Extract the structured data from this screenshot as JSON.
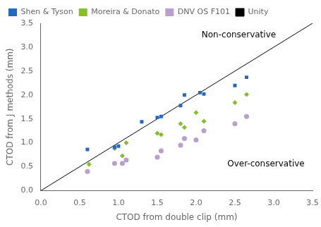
{
  "chart_data": {
    "type": "scatter",
    "xlabel": "CTOD from double clip (mm)",
    "ylabel": "CTOD from J methods (mm)",
    "series": [
      {
        "name": "Unity",
        "type": "line",
        "line_style": "solid",
        "color": "#000000",
        "x": [
          0,
          3.5
        ],
        "values": [
          0,
          3.5
        ]
      },
      {
        "name": "Shen & Tyson",
        "color": "#2468C0",
        "marker": "square",
        "x": [
          0.6,
          0.95,
          1.0,
          1.3,
          1.5,
          1.55,
          1.8,
          1.85,
          2.05,
          2.1,
          2.5,
          2.65
        ],
        "values": [
          0.86,
          0.91,
          0.93,
          1.44,
          1.53,
          1.55,
          1.78,
          2.0,
          2.05,
          2.02,
          2.2,
          2.37
        ]
      },
      {
        "name": "Moreira & Donato",
        "color": "#82C028",
        "marker": "diamond",
        "x": [
          0.62,
          0.95,
          1.05,
          1.1,
          1.5,
          1.55,
          1.8,
          1.85,
          2.0,
          2.1,
          2.5,
          2.65
        ],
        "values": [
          0.55,
          0.88,
          0.73,
          1.0,
          1.2,
          1.17,
          1.4,
          1.32,
          1.63,
          1.45,
          1.84,
          2.01
        ]
      },
      {
        "name": "DNV OS F101",
        "color": "#B8A0CC",
        "marker": "circle",
        "x": [
          0.6,
          0.95,
          1.05,
          1.1,
          1.5,
          1.55,
          1.8,
          1.85,
          2.0,
          2.1,
          2.5,
          2.65
        ],
        "values": [
          0.4,
          0.57,
          0.57,
          0.64,
          0.7,
          0.83,
          0.95,
          1.09,
          1.06,
          1.25,
          1.4,
          1.55
        ]
      }
    ],
    "xlim": [
      0,
      3.5
    ],
    "ylim": [
      0,
      3.5
    ],
    "xticks": [
      {
        "value": 0,
        "label": "0.0"
      },
      0.5,
      {
        "value": 1,
        "label": "1.0"
      },
      1.5,
      {
        "value": 2,
        "label": "2.0"
      },
      2.5,
      {
        "value": 3,
        "label": "3.0"
      },
      3.5
    ],
    "yticks": [
      {
        "value": 0,
        "label": "0.0"
      },
      0.5,
      {
        "value": 1,
        "label": "1.0"
      },
      1.5,
      {
        "value": 2,
        "label": "2.0"
      },
      2.5,
      {
        "value": 3,
        "label": "3.0"
      },
      3.5
    ],
    "grid": false,
    "legend": "upper left",
    "annotations": [
      {
        "text": "Non-conservative",
        "x": 2.55,
        "y": 3.25
      },
      {
        "text": "Over-conservative",
        "x": 2.9,
        "y": 0.55
      }
    ]
  }
}
